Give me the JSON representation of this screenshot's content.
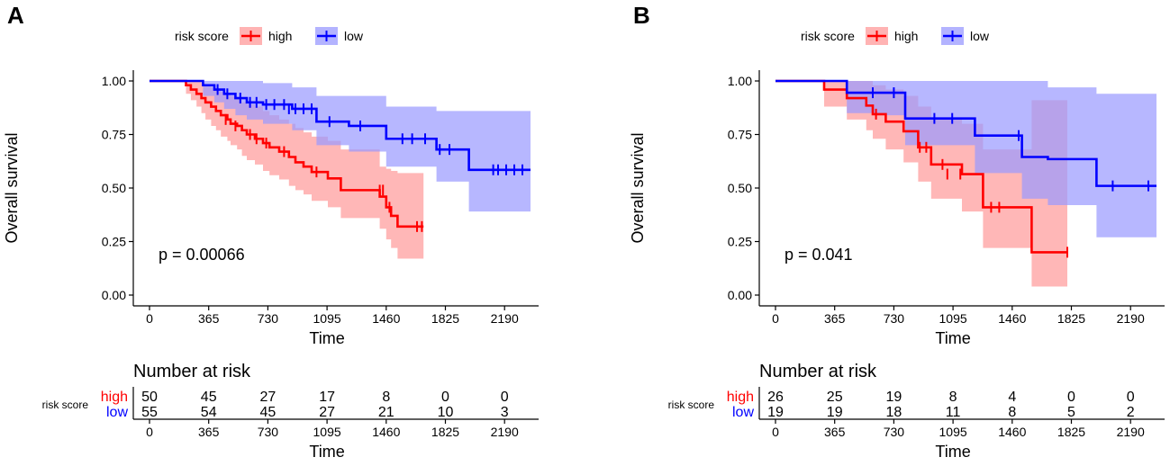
{
  "colors": {
    "high": "#ff0000",
    "low": "#0000ff",
    "high_fill": "#ff9999",
    "low_fill": "#9999ff",
    "axis": "#000000"
  },
  "chart_data": [
    {
      "panel_label": "A",
      "type": "line",
      "title": "",
      "xlabel": "Time",
      "ylabel": "Overall survival",
      "xlim": [
        -100,
        2400
      ],
      "ylim": [
        0,
        1
      ],
      "xticks": [
        0,
        365,
        730,
        1095,
        1460,
        1825,
        2190
      ],
      "yticks": [
        0,
        0.25,
        0.5,
        0.75,
        1
      ],
      "ytick_labels": [
        "0.00",
        "0.25",
        "0.50",
        "0.75",
        "1.00"
      ],
      "legend": {
        "title": "risk score",
        "position": "top",
        "entries": [
          "high",
          "low"
        ]
      },
      "pvalue": "p = 0.00066",
      "series": [
        {
          "name": "high",
          "step_x": [
            0,
            225,
            255,
            290,
            320,
            345,
            380,
            410,
            440,
            480,
            500,
            540,
            570,
            600,
            650,
            700,
            740,
            800,
            860,
            900,
            950,
            1000,
            1100,
            1180,
            1420,
            1460,
            1490,
            1530,
            1690
          ],
          "step_y": [
            1.0,
            0.98,
            0.96,
            0.94,
            0.92,
            0.9,
            0.88,
            0.86,
            0.84,
            0.82,
            0.8,
            0.79,
            0.77,
            0.75,
            0.73,
            0.71,
            0.69,
            0.67,
            0.645,
            0.62,
            0.6,
            0.575,
            0.545,
            0.49,
            0.46,
            0.41,
            0.37,
            0.32,
            0.32
          ],
          "ci_upper": [
            1.0,
            1.0,
            1.0,
            1.0,
            0.99,
            0.98,
            0.97,
            0.96,
            0.95,
            0.94,
            0.93,
            0.92,
            0.9,
            0.89,
            0.88,
            0.86,
            0.84,
            0.82,
            0.8,
            0.78,
            0.76,
            0.74,
            0.72,
            0.68,
            0.6,
            0.59,
            0.58,
            0.57,
            0.57
          ],
          "ci_lower": [
            1.0,
            0.94,
            0.91,
            0.88,
            0.85,
            0.82,
            0.79,
            0.77,
            0.74,
            0.72,
            0.7,
            0.68,
            0.65,
            0.63,
            0.61,
            0.58,
            0.56,
            0.54,
            0.51,
            0.49,
            0.47,
            0.44,
            0.41,
            0.36,
            0.31,
            0.26,
            0.22,
            0.17,
            0.17
          ],
          "censor_x": [
            470,
            530,
            620,
            660,
            720,
            830,
            1030,
            1420,
            1440,
            1480,
            1650,
            1680
          ],
          "censor_y": [
            0.82,
            0.79,
            0.75,
            0.73,
            0.71,
            0.67,
            0.575,
            0.49,
            0.49,
            0.41,
            0.32,
            0.32
          ]
        },
        {
          "name": "low",
          "step_x": [
            0,
            330,
            400,
            460,
            530,
            600,
            700,
            880,
            1030,
            1230,
            1460,
            1770,
            1970,
            2350
          ],
          "step_y": [
            1.0,
            0.98,
            0.96,
            0.94,
            0.92,
            0.9,
            0.89,
            0.87,
            0.81,
            0.79,
            0.73,
            0.68,
            0.585,
            0.585
          ],
          "ci_upper": [
            1.0,
            1.0,
            1.0,
            1.0,
            1.0,
            1.0,
            0.99,
            0.97,
            0.93,
            0.93,
            0.88,
            0.86,
            0.86,
            0.86
          ],
          "ci_lower": [
            1.0,
            0.93,
            0.9,
            0.87,
            0.84,
            0.82,
            0.8,
            0.77,
            0.7,
            0.67,
            0.6,
            0.53,
            0.39,
            0.39
          ],
          "censor_x": [
            420,
            480,
            560,
            620,
            660,
            720,
            770,
            830,
            860,
            900,
            950,
            1000,
            1110,
            1300,
            1560,
            1620,
            1700,
            1790,
            1850,
            2120,
            2150,
            2200,
            2250,
            2300
          ],
          "censor_y": [
            0.96,
            0.94,
            0.92,
            0.9,
            0.9,
            0.89,
            0.89,
            0.89,
            0.87,
            0.87,
            0.87,
            0.87,
            0.81,
            0.79,
            0.73,
            0.73,
            0.73,
            0.68,
            0.68,
            0.585,
            0.585,
            0.585,
            0.585,
            0.585
          ]
        }
      ],
      "risk_table": {
        "title": "Number at risk",
        "strata_title": "risk score",
        "xlabel": "Time",
        "rows": [
          {
            "name": "high",
            "values": [
              "50",
              "45",
              "27",
              "17",
              "8",
              "0",
              "0"
            ]
          },
          {
            "name": "low",
            "values": [
              "55",
              "54",
              "45",
              "27",
              "21",
              "10",
              "3"
            ]
          }
        ]
      }
    },
    {
      "panel_label": "B",
      "type": "line",
      "title": "",
      "xlabel": "Time",
      "ylabel": "Overall survival",
      "xlim": [
        -100,
        2400
      ],
      "ylim": [
        0,
        1
      ],
      "xticks": [
        0,
        365,
        730,
        1095,
        1460,
        1825,
        2190
      ],
      "yticks": [
        0,
        0.25,
        0.5,
        0.75,
        1
      ],
      "ytick_labels": [
        "0.00",
        "0.25",
        "0.50",
        "0.75",
        "1.00"
      ],
      "legend": {
        "title": "risk score",
        "position": "top",
        "entries": [
          "high",
          "low"
        ]
      },
      "pvalue": "p = 0.041",
      "series": [
        {
          "name": "high",
          "step_x": [
            0,
            300,
            440,
            560,
            600,
            680,
            790,
            880,
            960,
            1150,
            1280,
            1580,
            1800
          ],
          "step_y": [
            1.0,
            0.96,
            0.92,
            0.885,
            0.845,
            0.81,
            0.765,
            0.69,
            0.61,
            0.565,
            0.41,
            0.2,
            0.2
          ],
          "ci_upper": [
            1.0,
            1.0,
            1.0,
            1.0,
            0.98,
            0.96,
            0.93,
            0.88,
            0.83,
            0.8,
            0.68,
            0.91,
            0.91
          ],
          "ci_lower": [
            1.0,
            0.88,
            0.82,
            0.77,
            0.73,
            0.68,
            0.62,
            0.53,
            0.45,
            0.39,
            0.22,
            0.04,
            0.04
          ],
          "censor_x": [
            620,
            890,
            930,
            1030,
            1060,
            1140,
            1330,
            1380,
            1800
          ],
          "censor_y": [
            0.845,
            0.69,
            0.69,
            0.61,
            0.565,
            0.565,
            0.41,
            0.41,
            0.2
          ]
        },
        {
          "name": "low",
          "step_x": [
            0,
            440,
            680,
            800,
            1230,
            1520,
            1680,
            1980,
            2350
          ],
          "step_y": [
            1.0,
            0.945,
            0.945,
            0.825,
            0.745,
            0.645,
            0.635,
            0.51,
            0.51
          ],
          "ci_upper": [
            1.0,
            1.0,
            1.0,
            1.0,
            1.0,
            1.0,
            0.97,
            0.94,
            0.94
          ],
          "ci_lower": [
            1.0,
            0.85,
            0.84,
            0.7,
            0.57,
            0.45,
            0.42,
            0.27,
            0.27
          ],
          "censor_x": [
            600,
            730,
            980,
            1090,
            1500,
            2080,
            2300
          ],
          "censor_y": [
            0.945,
            0.945,
            0.825,
            0.825,
            0.745,
            0.51,
            0.51
          ]
        }
      ],
      "risk_table": {
        "title": "Number at risk",
        "strata_title": "risk score",
        "xlabel": "Time",
        "rows": [
          {
            "name": "high",
            "values": [
              "26",
              "25",
              "19",
              "8",
              "4",
              "0",
              "0"
            ]
          },
          {
            "name": "low",
            "values": [
              "19",
              "19",
              "18",
              "11",
              "8",
              "5",
              "2"
            ]
          }
        ]
      }
    }
  ]
}
